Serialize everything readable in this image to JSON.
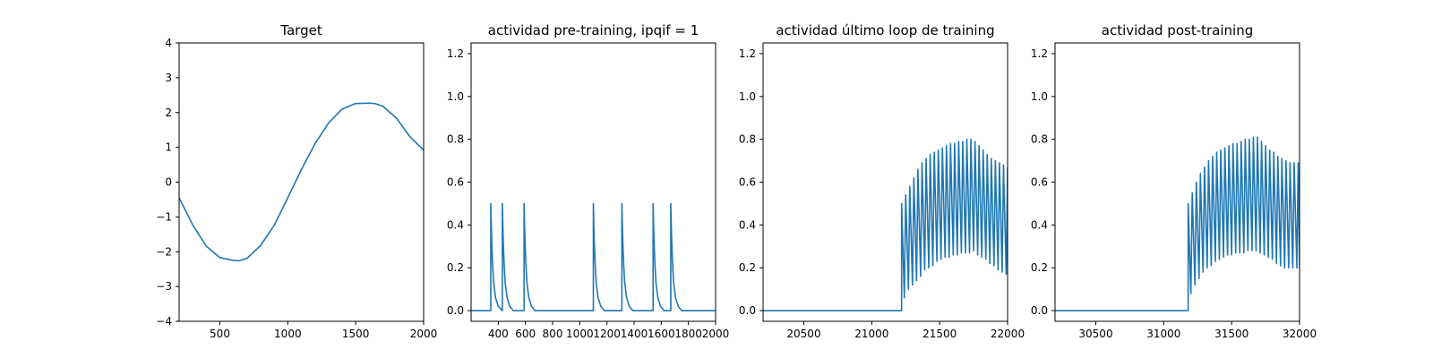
{
  "chart_data": [
    {
      "type": "line",
      "title": "Target",
      "xlabel": "",
      "ylabel": "",
      "xlim": [
        200,
        2000
      ],
      "ylim": [
        -4,
        4
      ],
      "xticks": [
        500,
        1000,
        1500,
        2000
      ],
      "yticks": [
        -4,
        -3,
        -2,
        -1,
        0,
        1,
        2,
        3,
        4
      ],
      "grid": false,
      "series": [
        {
          "color": "#1f77b4",
          "x": [
            200,
            300,
            400,
            500,
            600,
            640,
            700,
            800,
            900,
            1000,
            1100,
            1200,
            1300,
            1400,
            1500,
            1600,
            1640,
            1700,
            1800,
            1900,
            2000
          ],
          "y": [
            -0.45,
            -1.23,
            -1.84,
            -2.17,
            -2.25,
            -2.26,
            -2.19,
            -1.82,
            -1.24,
            -0.45,
            0.36,
            1.1,
            1.7,
            2.1,
            2.26,
            2.27,
            2.26,
            2.18,
            1.84,
            1.3,
            0.92
          ]
        }
      ]
    },
    {
      "type": "line",
      "title": "actividad pre-training, ipqif = 1",
      "xlabel": "",
      "ylabel": "",
      "xlim": [
        200,
        2000
      ],
      "ylim": [
        -0.05,
        1.25
      ],
      "xticks": [
        400,
        600,
        800,
        1000,
        1200,
        1400,
        1600,
        1800,
        2000
      ],
      "yticks": [
        0.0,
        0.2,
        0.4,
        0.6,
        0.8,
        1.0,
        1.2
      ],
      "grid": false,
      "series": [
        {
          "color": "#1f77b4",
          "x": [
            200,
            345,
            345,
            348,
            352,
            358,
            366,
            380,
            400,
            430,
            430,
            433,
            437,
            443,
            451,
            465,
            485,
            510,
            590,
            590,
            593,
            597,
            603,
            611,
            625,
            645,
            670,
            1100,
            1100,
            1103,
            1107,
            1113,
            1121,
            1135,
            1155,
            1180,
            1310,
            1310,
            1313,
            1317,
            1323,
            1331,
            1345,
            1365,
            1390,
            1540,
            1540,
            1543,
            1547,
            1553,
            1561,
            1575,
            1595,
            1620,
            1670,
            1670,
            1673,
            1677,
            1683,
            1691,
            1705,
            1725,
            1750,
            2000
          ],
          "y": [
            0.0,
            0.0,
            0.5,
            0.41,
            0.32,
            0.22,
            0.13,
            0.06,
            0.02,
            0.0,
            0.5,
            0.41,
            0.32,
            0.22,
            0.13,
            0.06,
            0.02,
            0.0,
            0.0,
            0.5,
            0.41,
            0.32,
            0.22,
            0.13,
            0.06,
            0.02,
            0.0,
            0.0,
            0.5,
            0.41,
            0.32,
            0.22,
            0.13,
            0.06,
            0.02,
            0.0,
            0.0,
            0.5,
            0.41,
            0.32,
            0.22,
            0.13,
            0.06,
            0.02,
            0.0,
            0.0,
            0.5,
            0.41,
            0.32,
            0.22,
            0.13,
            0.06,
            0.02,
            0.0,
            0.0,
            0.5,
            0.41,
            0.32,
            0.22,
            0.13,
            0.06,
            0.02,
            0.0,
            0.0
          ]
        }
      ]
    },
    {
      "type": "line",
      "title": "actividad último loop de training",
      "xlabel": "",
      "ylabel": "",
      "xlim": [
        20200,
        22000
      ],
      "ylim": [
        -0.05,
        1.25
      ],
      "xticks": [
        20500,
        21000,
        21500,
        22000
      ],
      "yticks": [
        0.0,
        0.2,
        0.4,
        0.6,
        0.8,
        1.0,
        1.2
      ],
      "grid": false,
      "series": [
        {
          "color": "#1f77b4",
          "x": [
            20200,
            21220,
            21220,
            21240,
            21250,
            21270,
            21280,
            21300,
            21310,
            21330,
            21340,
            21360,
            21370,
            21390,
            21400,
            21420,
            21430,
            21450,
            21460,
            21480,
            21490,
            21510,
            21520,
            21540,
            21550,
            21570,
            21580,
            21600,
            21610,
            21630,
            21640,
            21660,
            21670,
            21690,
            21700,
            21720,
            21730,
            21750,
            21760,
            21780,
            21790,
            21810,
            21820,
            21840,
            21850,
            21870,
            21880,
            21900,
            21910,
            21930,
            21940,
            21960,
            21970,
            21990,
            22000
          ],
          "y": [
            0.0,
            0.0,
            0.5,
            0.06,
            0.54,
            0.1,
            0.58,
            0.12,
            0.62,
            0.14,
            0.66,
            0.16,
            0.69,
            0.19,
            0.71,
            0.2,
            0.73,
            0.21,
            0.74,
            0.23,
            0.75,
            0.24,
            0.76,
            0.25,
            0.77,
            0.25,
            0.78,
            0.26,
            0.78,
            0.26,
            0.79,
            0.27,
            0.79,
            0.27,
            0.8,
            0.27,
            0.8,
            0.28,
            0.79,
            0.26,
            0.77,
            0.25,
            0.75,
            0.24,
            0.73,
            0.22,
            0.71,
            0.21,
            0.7,
            0.19,
            0.69,
            0.18,
            0.68,
            0.17,
            0.67
          ]
        }
      ]
    },
    {
      "type": "line",
      "title": "actividad post-training",
      "xlabel": "",
      "ylabel": "",
      "xlim": [
        30200,
        32000
      ],
      "ylim": [
        -0.05,
        1.25
      ],
      "xticks": [
        30500,
        31000,
        31500,
        32000
      ],
      "yticks": [
        0.0,
        0.2,
        0.4,
        0.6,
        0.8,
        1.0,
        1.2
      ],
      "grid": false,
      "series": [
        {
          "color": "#1f77b4",
          "x": [
            30200,
            31180,
            31180,
            31200,
            31210,
            31230,
            31240,
            31260,
            31270,
            31290,
            31300,
            31320,
            31330,
            31350,
            31360,
            31380,
            31390,
            31410,
            31420,
            31440,
            31450,
            31470,
            31480,
            31500,
            31510,
            31530,
            31540,
            31560,
            31570,
            31590,
            31600,
            31620,
            31630,
            31650,
            31660,
            31680,
            31690,
            31710,
            31720,
            31740,
            31750,
            31770,
            31780,
            31800,
            31810,
            31830,
            31840,
            31860,
            31870,
            31890,
            31900,
            31920,
            31930,
            31950,
            31960,
            31980,
            31990,
            32000
          ],
          "y": [
            0.0,
            0.0,
            0.5,
            0.08,
            0.55,
            0.12,
            0.6,
            0.15,
            0.64,
            0.18,
            0.67,
            0.2,
            0.7,
            0.21,
            0.72,
            0.23,
            0.74,
            0.24,
            0.75,
            0.25,
            0.76,
            0.26,
            0.77,
            0.26,
            0.78,
            0.27,
            0.78,
            0.27,
            0.79,
            0.27,
            0.8,
            0.28,
            0.8,
            0.28,
            0.81,
            0.28,
            0.81,
            0.27,
            0.79,
            0.26,
            0.77,
            0.25,
            0.75,
            0.24,
            0.74,
            0.22,
            0.72,
            0.21,
            0.71,
            0.2,
            0.7,
            0.2,
            0.69,
            0.2,
            0.69,
            0.2,
            0.69,
            0.2
          ]
        }
      ]
    }
  ]
}
